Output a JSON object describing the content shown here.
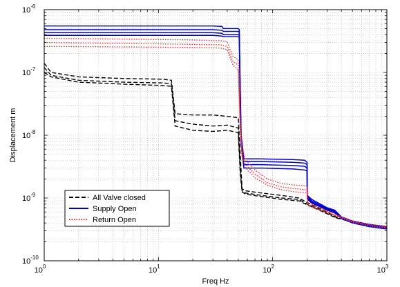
{
  "chart_data": {
    "type": "line",
    "title": "",
    "xlabel": "Freq  Hz",
    "ylabel": "Displacement  m",
    "x_scale": "log",
    "y_scale": "log",
    "xlim": [
      1,
      1000
    ],
    "ylim": [
      1e-10,
      1e-06
    ],
    "grid": true,
    "legend_position": "bottom-left",
    "x_ticks": [
      {
        "base": "10",
        "exp": "0"
      },
      {
        "base": "10",
        "exp": "1"
      },
      {
        "base": "10",
        "exp": "2"
      },
      {
        "base": "10",
        "exp": "3"
      }
    ],
    "y_ticks": [
      {
        "base": "10",
        "exp": "-10"
      },
      {
        "base": "10",
        "exp": "-9"
      },
      {
        "base": "10",
        "exp": "-8"
      },
      {
        "base": "10",
        "exp": "-7"
      },
      {
        "base": "10",
        "exp": "-6"
      }
    ],
    "series": [
      {
        "name": "All Valve closed",
        "color": "#000000",
        "style": "dashed",
        "lines": [
          [
            [
              1,
              1.4e-07
            ],
            [
              1.15,
              1e-07
            ],
            [
              2,
              8.5e-08
            ],
            [
              5,
              8e-08
            ],
            [
              11,
              7.8e-08
            ],
            [
              13,
              7.5e-08
            ],
            [
              14,
              2.2e-08
            ],
            [
              20,
              2.1e-08
            ],
            [
              30,
              2.1e-08
            ],
            [
              40,
              2e-08
            ],
            [
              50,
              1.9e-08
            ],
            [
              52,
              5e-09
            ],
            [
              54,
              1.4e-09
            ],
            [
              58,
              1.3e-09
            ],
            [
              80,
              1.2e-09
            ],
            [
              120,
              1.1e-09
            ],
            [
              170,
              1e-09
            ],
            [
              200,
              8.5e-10
            ],
            [
              300,
              6e-10
            ],
            [
              360,
              5e-10
            ],
            [
              400,
              4.8e-10
            ],
            [
              500,
              4.3e-10
            ],
            [
              700,
              3.8e-10
            ],
            [
              1000,
              3.5e-10
            ]
          ],
          [
            [
              1,
              1.2e-07
            ],
            [
              1.15,
              9e-08
            ],
            [
              2,
              7.5e-08
            ],
            [
              5,
              7e-08
            ],
            [
              11,
              6.8e-08
            ],
            [
              13,
              6.6e-08
            ],
            [
              14,
              1.7e-08
            ],
            [
              20,
              1.5e-08
            ],
            [
              30,
              1.4e-08
            ],
            [
              40,
              1.45e-08
            ],
            [
              50,
              1.3e-08
            ],
            [
              52,
              3e-09
            ],
            [
              54,
              1.3e-09
            ],
            [
              58,
              1.2e-09
            ],
            [
              80,
              1.1e-09
            ],
            [
              120,
              1e-09
            ],
            [
              170,
              9.5e-10
            ],
            [
              200,
              8e-10
            ],
            [
              300,
              5.8e-10
            ],
            [
              360,
              4.9e-10
            ],
            [
              400,
              4.7e-10
            ],
            [
              500,
              4.2e-10
            ],
            [
              700,
              3.7e-10
            ],
            [
              1000,
              3.4e-10
            ]
          ],
          [
            [
              1,
              1e-07
            ],
            [
              1.15,
              8.5e-08
            ],
            [
              2,
              7e-08
            ],
            [
              5,
              6.5e-08
            ],
            [
              11,
              6.2e-08
            ],
            [
              13,
              6e-08
            ],
            [
              14,
              1.4e-08
            ],
            [
              20,
              1.2e-08
            ],
            [
              30,
              1.15e-08
            ],
            [
              40,
              1.2e-08
            ],
            [
              50,
              1.1e-08
            ],
            [
              52,
              2.5e-09
            ],
            [
              54,
              1.25e-09
            ],
            [
              58,
              1.15e-09
            ],
            [
              80,
              1.05e-09
            ],
            [
              120,
              9.5e-10
            ],
            [
              170,
              9e-10
            ],
            [
              200,
              7.8e-10
            ],
            [
              300,
              5.6e-10
            ],
            [
              360,
              4.8e-10
            ],
            [
              400,
              4.6e-10
            ],
            [
              500,
              4.1e-10
            ],
            [
              700,
              3.6e-10
            ],
            [
              1000,
              3.3e-10
            ]
          ]
        ]
      },
      {
        "name": "Supply Open",
        "color": "#0000cc",
        "style": "solid",
        "lines": [
          [
            [
              1,
              5.5e-07
            ],
            [
              30,
              5.5e-07
            ],
            [
              36,
              5.4e-07
            ],
            [
              37,
              5e-07
            ],
            [
              50,
              5e-07
            ],
            [
              51,
              4.8e-07
            ],
            [
              52,
              6e-08
            ],
            [
              53,
              1e-08
            ],
            [
              56,
              4.2e-09
            ],
            [
              80,
              4.2e-09
            ],
            [
              150,
              4.1e-09
            ],
            [
              190,
              4e-09
            ],
            [
              200,
              3.7e-09
            ],
            [
              201,
              1.1e-09
            ],
            [
              220,
              9.5e-10
            ],
            [
              300,
              7e-10
            ],
            [
              350,
              6.4e-10
            ],
            [
              400,
              5e-10
            ],
            [
              500,
              4.3e-10
            ],
            [
              700,
              3.8e-10
            ],
            [
              1000,
              3.5e-10
            ]
          ],
          [
            [
              1,
              4.8e-07
            ],
            [
              30,
              4.8e-07
            ],
            [
              36,
              4.7e-07
            ],
            [
              37,
              4.5e-07
            ],
            [
              50,
              4.5e-07
            ],
            [
              51,
              4.3e-07
            ],
            [
              52,
              5e-08
            ],
            [
              53,
              9e-09
            ],
            [
              56,
              3.8e-09
            ],
            [
              80,
              3.8e-09
            ],
            [
              150,
              3.7e-09
            ],
            [
              190,
              3.6e-09
            ],
            [
              200,
              3.4e-09
            ],
            [
              201,
              1.05e-09
            ],
            [
              220,
              9e-10
            ],
            [
              300,
              6.8e-10
            ],
            [
              350,
              6.2e-10
            ],
            [
              400,
              4.9e-10
            ],
            [
              500,
              4.2e-10
            ],
            [
              700,
              3.7e-10
            ],
            [
              1000,
              3.4e-10
            ]
          ],
          [
            [
              1,
              4.3e-07
            ],
            [
              30,
              4.3e-07
            ],
            [
              36,
              4.2e-07
            ],
            [
              37,
              4e-07
            ],
            [
              50,
              4e-07
            ],
            [
              51,
              3.9e-07
            ],
            [
              52,
              4e-08
            ],
            [
              53,
              8e-09
            ],
            [
              56,
              3.4e-09
            ],
            [
              80,
              3.4e-09
            ],
            [
              150,
              3.3e-09
            ],
            [
              190,
              3.2e-09
            ],
            [
              200,
              3e-09
            ],
            [
              201,
              1e-09
            ],
            [
              220,
              8.6e-10
            ],
            [
              300,
              6.6e-10
            ],
            [
              350,
              6e-10
            ],
            [
              400,
              4.8e-10
            ],
            [
              500,
              4.1e-10
            ],
            [
              700,
              3.6e-10
            ],
            [
              1000,
              3.3e-10
            ]
          ],
          [
            [
              1,
              3.9e-07
            ],
            [
              30,
              3.9e-07
            ],
            [
              36,
              3.8e-07
            ],
            [
              37,
              3.7e-07
            ],
            [
              50,
              3.7e-07
            ],
            [
              51,
              3.6e-07
            ],
            [
              52,
              3e-08
            ],
            [
              53,
              7e-09
            ],
            [
              56,
              3e-09
            ],
            [
              80,
              3e-09
            ],
            [
              150,
              2.9e-09
            ],
            [
              190,
              2.8e-09
            ],
            [
              200,
              2.7e-09
            ],
            [
              201,
              9.5e-10
            ],
            [
              220,
              8.3e-10
            ],
            [
              300,
              6.4e-10
            ],
            [
              350,
              5.8e-10
            ],
            [
              400,
              4.7e-10
            ],
            [
              500,
              4e-10
            ],
            [
              700,
              3.5e-10
            ],
            [
              1000,
              3.2e-10
            ]
          ]
        ]
      },
      {
        "name": "Return Open",
        "color": "#ff3333",
        "style": "dotted",
        "lines": [
          [
            [
              1,
              3.5e-07
            ],
            [
              5,
              3.4e-07
            ],
            [
              20,
              3.3e-07
            ],
            [
              35,
              3.2e-07
            ],
            [
              40,
              3.1e-07
            ],
            [
              42,
              2.4e-07
            ],
            [
              45,
              1.8e-07
            ],
            [
              50,
              1.6e-07
            ],
            [
              52,
              2e-08
            ],
            [
              54,
              6e-09
            ],
            [
              58,
              4e-09
            ],
            [
              70,
              2.8e-09
            ],
            [
              90,
              2e-09
            ],
            [
              120,
              1.7e-09
            ],
            [
              160,
              1.6e-09
            ],
            [
              200,
              1.55e-09
            ],
            [
              203,
              8.5e-10
            ],
            [
              250,
              7.2e-10
            ],
            [
              300,
              6.2e-10
            ],
            [
              400,
              5e-10
            ],
            [
              500,
              4.3e-10
            ],
            [
              700,
              3.8e-10
            ],
            [
              1000,
              3.5e-10
            ]
          ],
          [
            [
              1,
              3e-07
            ],
            [
              5,
              2.9e-07
            ],
            [
              20,
              2.8e-07
            ],
            [
              35,
              2.75e-07
            ],
            [
              40,
              2.6e-07
            ],
            [
              42,
              2e-07
            ],
            [
              45,
              1.5e-07
            ],
            [
              50,
              1.3e-07
            ],
            [
              52,
              1.5e-08
            ],
            [
              54,
              5e-09
            ],
            [
              58,
              3.4e-09
            ],
            [
              70,
              2.4e-09
            ],
            [
              90,
              1.75e-09
            ],
            [
              120,
              1.5e-09
            ],
            [
              160,
              1.4e-09
            ],
            [
              200,
              1.35e-09
            ],
            [
              203,
              8e-10
            ],
            [
              250,
              6.8e-10
            ],
            [
              300,
              6e-10
            ],
            [
              400,
              4.9e-10
            ],
            [
              500,
              4.2e-10
            ],
            [
              700,
              3.7e-10
            ],
            [
              1000,
              3.4e-10
            ]
          ],
          [
            [
              1,
              2.6e-07
            ],
            [
              5,
              2.55e-07
            ],
            [
              20,
              2.5e-07
            ],
            [
              35,
              2.45e-07
            ],
            [
              40,
              2.3e-07
            ],
            [
              42,
              1.8e-07
            ],
            [
              45,
              1.3e-07
            ],
            [
              50,
              1.1e-07
            ],
            [
              52,
              1.2e-08
            ],
            [
              54,
              4.5e-09
            ],
            [
              58,
              3e-09
            ],
            [
              70,
              2.1e-09
            ],
            [
              90,
              1.6e-09
            ],
            [
              120,
              1.35e-09
            ],
            [
              160,
              1.25e-09
            ],
            [
              200,
              1.2e-09
            ],
            [
              203,
              7.6e-10
            ],
            [
              250,
              6.5e-10
            ],
            [
              300,
              5.8e-10
            ],
            [
              400,
              4.8e-10
            ],
            [
              500,
              4.1e-10
            ],
            [
              700,
              3.6e-10
            ],
            [
              1000,
              3.3e-10
            ]
          ]
        ]
      }
    ]
  }
}
